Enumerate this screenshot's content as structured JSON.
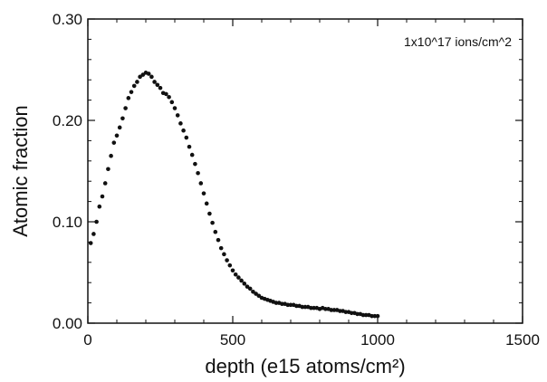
{
  "chart_data": {
    "type": "scatter",
    "title": "",
    "xlabel": "depth (e15 atoms/cm²)",
    "ylabel": "Atomic fraction",
    "annotation": "1x10^17 ions/cm^2",
    "xlim": [
      0,
      1500
    ],
    "ylim": [
      0,
      0.3
    ],
    "x_ticks": [
      0,
      500,
      1000,
      1500
    ],
    "x_tick_labels": [
      "0",
      "500",
      "1000",
      "1500"
    ],
    "y_ticks": [
      0.0,
      0.1,
      0.2,
      0.3
    ],
    "y_tick_labels": [
      "0.00",
      "0.10",
      "0.20",
      "0.30"
    ],
    "grid": false,
    "series": [
      {
        "marker_color": "#111111",
        "x": [
          10,
          20,
          30,
          40,
          50,
          60,
          70,
          80,
          90,
          100,
          110,
          120,
          130,
          140,
          150,
          160,
          170,
          180,
          190,
          200,
          210,
          220,
          230,
          240,
          250,
          260,
          270,
          280,
          290,
          300,
          310,
          320,
          330,
          340,
          350,
          360,
          370,
          380,
          390,
          400,
          410,
          420,
          430,
          440,
          450,
          460,
          470,
          480,
          490,
          500,
          510,
          520,
          530,
          540,
          550,
          560,
          570,
          580,
          590,
          600,
          610,
          620,
          630,
          640,
          650,
          660,
          670,
          680,
          690,
          700,
          710,
          720,
          730,
          740,
          750,
          760,
          770,
          780,
          790,
          800,
          810,
          820,
          830,
          840,
          850,
          860,
          870,
          880,
          890,
          900,
          910,
          920,
          930,
          940,
          950,
          960,
          970,
          980,
          990,
          1000
        ],
        "y": [
          0.079,
          0.088,
          0.1,
          0.115,
          0.125,
          0.138,
          0.152,
          0.165,
          0.178,
          0.185,
          0.193,
          0.202,
          0.212,
          0.222,
          0.228,
          0.234,
          0.238,
          0.243,
          0.245,
          0.247,
          0.246,
          0.243,
          0.238,
          0.235,
          0.232,
          0.227,
          0.226,
          0.223,
          0.218,
          0.212,
          0.205,
          0.197,
          0.19,
          0.183,
          0.174,
          0.166,
          0.157,
          0.148,
          0.138,
          0.128,
          0.118,
          0.108,
          0.099,
          0.09,
          0.082,
          0.074,
          0.068,
          0.062,
          0.057,
          0.052,
          0.048,
          0.045,
          0.042,
          0.039,
          0.036,
          0.034,
          0.031,
          0.029,
          0.027,
          0.025,
          0.024,
          0.023,
          0.022,
          0.021,
          0.02,
          0.02,
          0.019,
          0.019,
          0.018,
          0.018,
          0.018,
          0.017,
          0.017,
          0.016,
          0.016,
          0.016,
          0.015,
          0.015,
          0.015,
          0.014,
          0.015,
          0.014,
          0.014,
          0.013,
          0.013,
          0.013,
          0.012,
          0.012,
          0.011,
          0.011,
          0.01,
          0.01,
          0.009,
          0.009,
          0.008,
          0.008,
          0.008,
          0.007,
          0.007,
          0.007
        ]
      }
    ]
  }
}
